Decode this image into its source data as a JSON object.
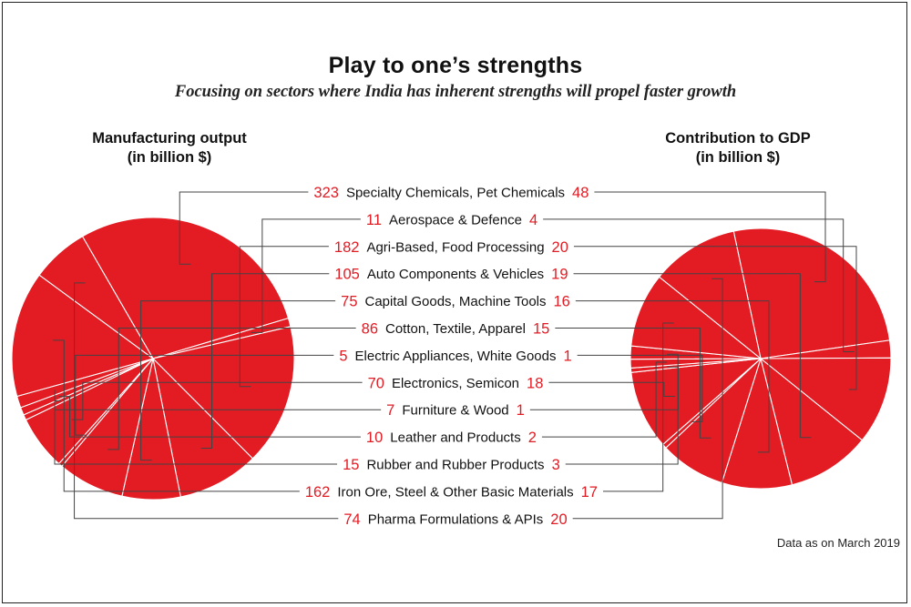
{
  "header": {
    "title": "Play to one’s strengths",
    "subtitle": "Focusing on sectors where India has inherent strengths will propel faster growth"
  },
  "left_label": {
    "line1": "Manufacturing output",
    "line2": "(in billion $)"
  },
  "right_label": {
    "line1": "Contribution to GDP",
    "line2": "(in billion $)"
  },
  "footnote": "Data as on March 2019",
  "colors": {
    "pie": "#e31b23",
    "value": "#e31b23",
    "line": "#444444",
    "text": "#111111"
  },
  "chart_data": [
    {
      "type": "pie",
      "title": "Manufacturing output (in billion $)",
      "categories": [
        "Specialty Chemicals, Pet Chemicals",
        "Aerospace & Defence",
        "Agri-Based, Food Processing",
        "Auto Components & Vehicles",
        "Capital Goods, Machine Tools",
        "Cotton, Textile, Apparel",
        "Electric Appliances, White Goods",
        "Electronics, Semicon",
        "Furniture & Wood",
        "Leather and Products",
        "Rubber and Rubber Products",
        "Iron Ore, Steel & Other Basic Materials",
        "Pharma Formulations & APIs"
      ],
      "values": [
        323,
        11,
        182,
        105,
        75,
        86,
        5,
        70,
        7,
        10,
        15,
        162,
        74
      ]
    },
    {
      "type": "pie",
      "title": "Contribution to GDP (in billion $)",
      "categories": [
        "Specialty Chemicals, Pet Chemicals",
        "Aerospace & Defence",
        "Agri-Based, Food Processing",
        "Auto Components & Vehicles",
        "Capital Goods, Machine Tools",
        "Cotton, Textile, Apparel",
        "Electric Appliances, White Goods",
        "Electronics, Semicon",
        "Furniture & Wood",
        "Leather and Products",
        "Rubber and Rubber Products",
        "Iron Ore, Steel & Other Basic Materials",
        "Pharma Formulations & APIs"
      ],
      "values": [
        48,
        4,
        20,
        19,
        16,
        15,
        1,
        18,
        1,
        2,
        3,
        17,
        20
      ]
    }
  ]
}
